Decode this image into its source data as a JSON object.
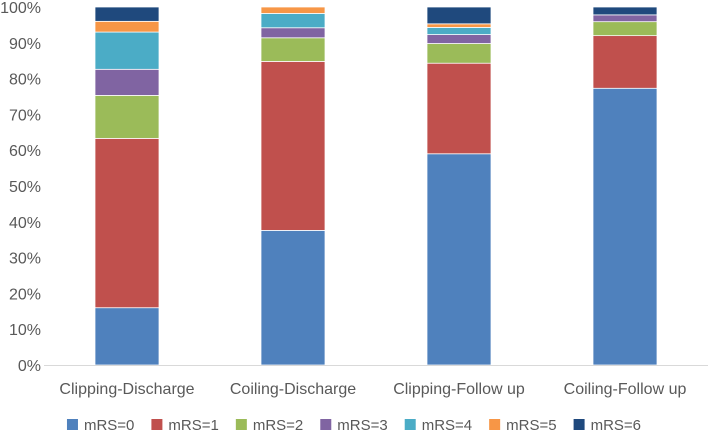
{
  "chart_data": {
    "type": "bar",
    "stacked": true,
    "percent": true,
    "title": "",
    "xlabel": "",
    "ylabel": "",
    "ylim": [
      0,
      100
    ],
    "yticks": [
      "0%",
      "10%",
      "20%",
      "30%",
      "40%",
      "50%",
      "60%",
      "70%",
      "80%",
      "90%",
      "100%"
    ],
    "grid": false,
    "legend_position": "bottom",
    "categories": [
      "Clipping-Discharge",
      "Coiling-Discharge",
      "Clipping-Follow up",
      "Coiling-Follow up"
    ],
    "series": [
      {
        "name": "mRS=0",
        "color": "#4f81bd",
        "values": [
          16.0,
          37.6,
          59.0,
          77.3
        ]
      },
      {
        "name": "mRS=1",
        "color": "#c0504d",
        "values": [
          47.3,
          47.2,
          25.3,
          14.7
        ]
      },
      {
        "name": "mRS=2",
        "color": "#9bbb59",
        "values": [
          12.0,
          6.6,
          5.5,
          3.9
        ]
      },
      {
        "name": "mRS=3",
        "color": "#8064a2",
        "values": [
          7.3,
          2.8,
          2.5,
          1.9
        ]
      },
      {
        "name": "mRS=4",
        "color": "#4bacc6",
        "values": [
          10.4,
          4.0,
          2.0,
          0.0
        ]
      },
      {
        "name": "mRS=5",
        "color": "#f79646",
        "values": [
          3.0,
          1.8,
          1.0,
          0.0
        ]
      },
      {
        "name": "mRS=6",
        "color": "#1f497d",
        "values": [
          4.0,
          0.0,
          4.7,
          2.2
        ]
      }
    ]
  }
}
